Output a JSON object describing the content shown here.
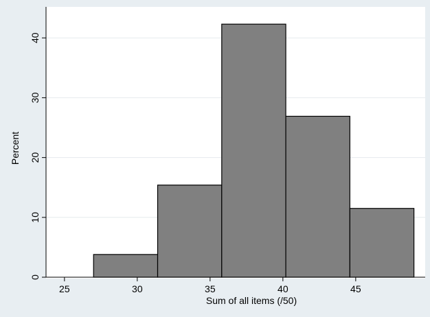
{
  "chart_data": {
    "type": "bar",
    "subtype": "histogram",
    "xlabel": "Sum of all items (/50)",
    "ylabel": "Percent",
    "xlim": [
      24.3,
      49.3
    ],
    "ylim": [
      0,
      44.5
    ],
    "xticks": [
      25,
      30,
      35,
      40,
      45
    ],
    "yticks": [
      0,
      10,
      20,
      30,
      40
    ],
    "grid": "horizontal",
    "bin_edges": [
      27.0,
      31.4,
      35.8,
      40.2,
      44.6,
      49.0
    ],
    "values": [
      3.8,
      15.4,
      42.3,
      26.9,
      11.5
    ],
    "colors": {
      "outer_background": "#e8eef2",
      "plot_background": "#ffffff",
      "bar_fill": "#808080",
      "bar_stroke": "#000000",
      "grid": "#e6eaee",
      "axis": "#000000"
    }
  }
}
